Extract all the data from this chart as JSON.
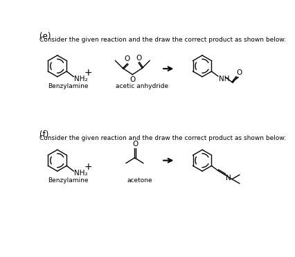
{
  "background_color": "#ffffff",
  "text_color": "#000000",
  "font_size_label": 7.5,
  "font_size_part": 8.5,
  "font_size_text": 6.5,
  "section_e_label": "(e)",
  "section_f_label": "(f)",
  "instruction_text": "Consider the given reaction and the draw the correct product as shown below:",
  "benzylamine_label": "Benzylamine",
  "acetic_anhydride_label": "acetic anhydride",
  "acetone_label": "acetone",
  "nh2_label": "NH₂",
  "nh_label": "NH",
  "n_label": "N",
  "o_label": "O",
  "plus_sign": "+"
}
